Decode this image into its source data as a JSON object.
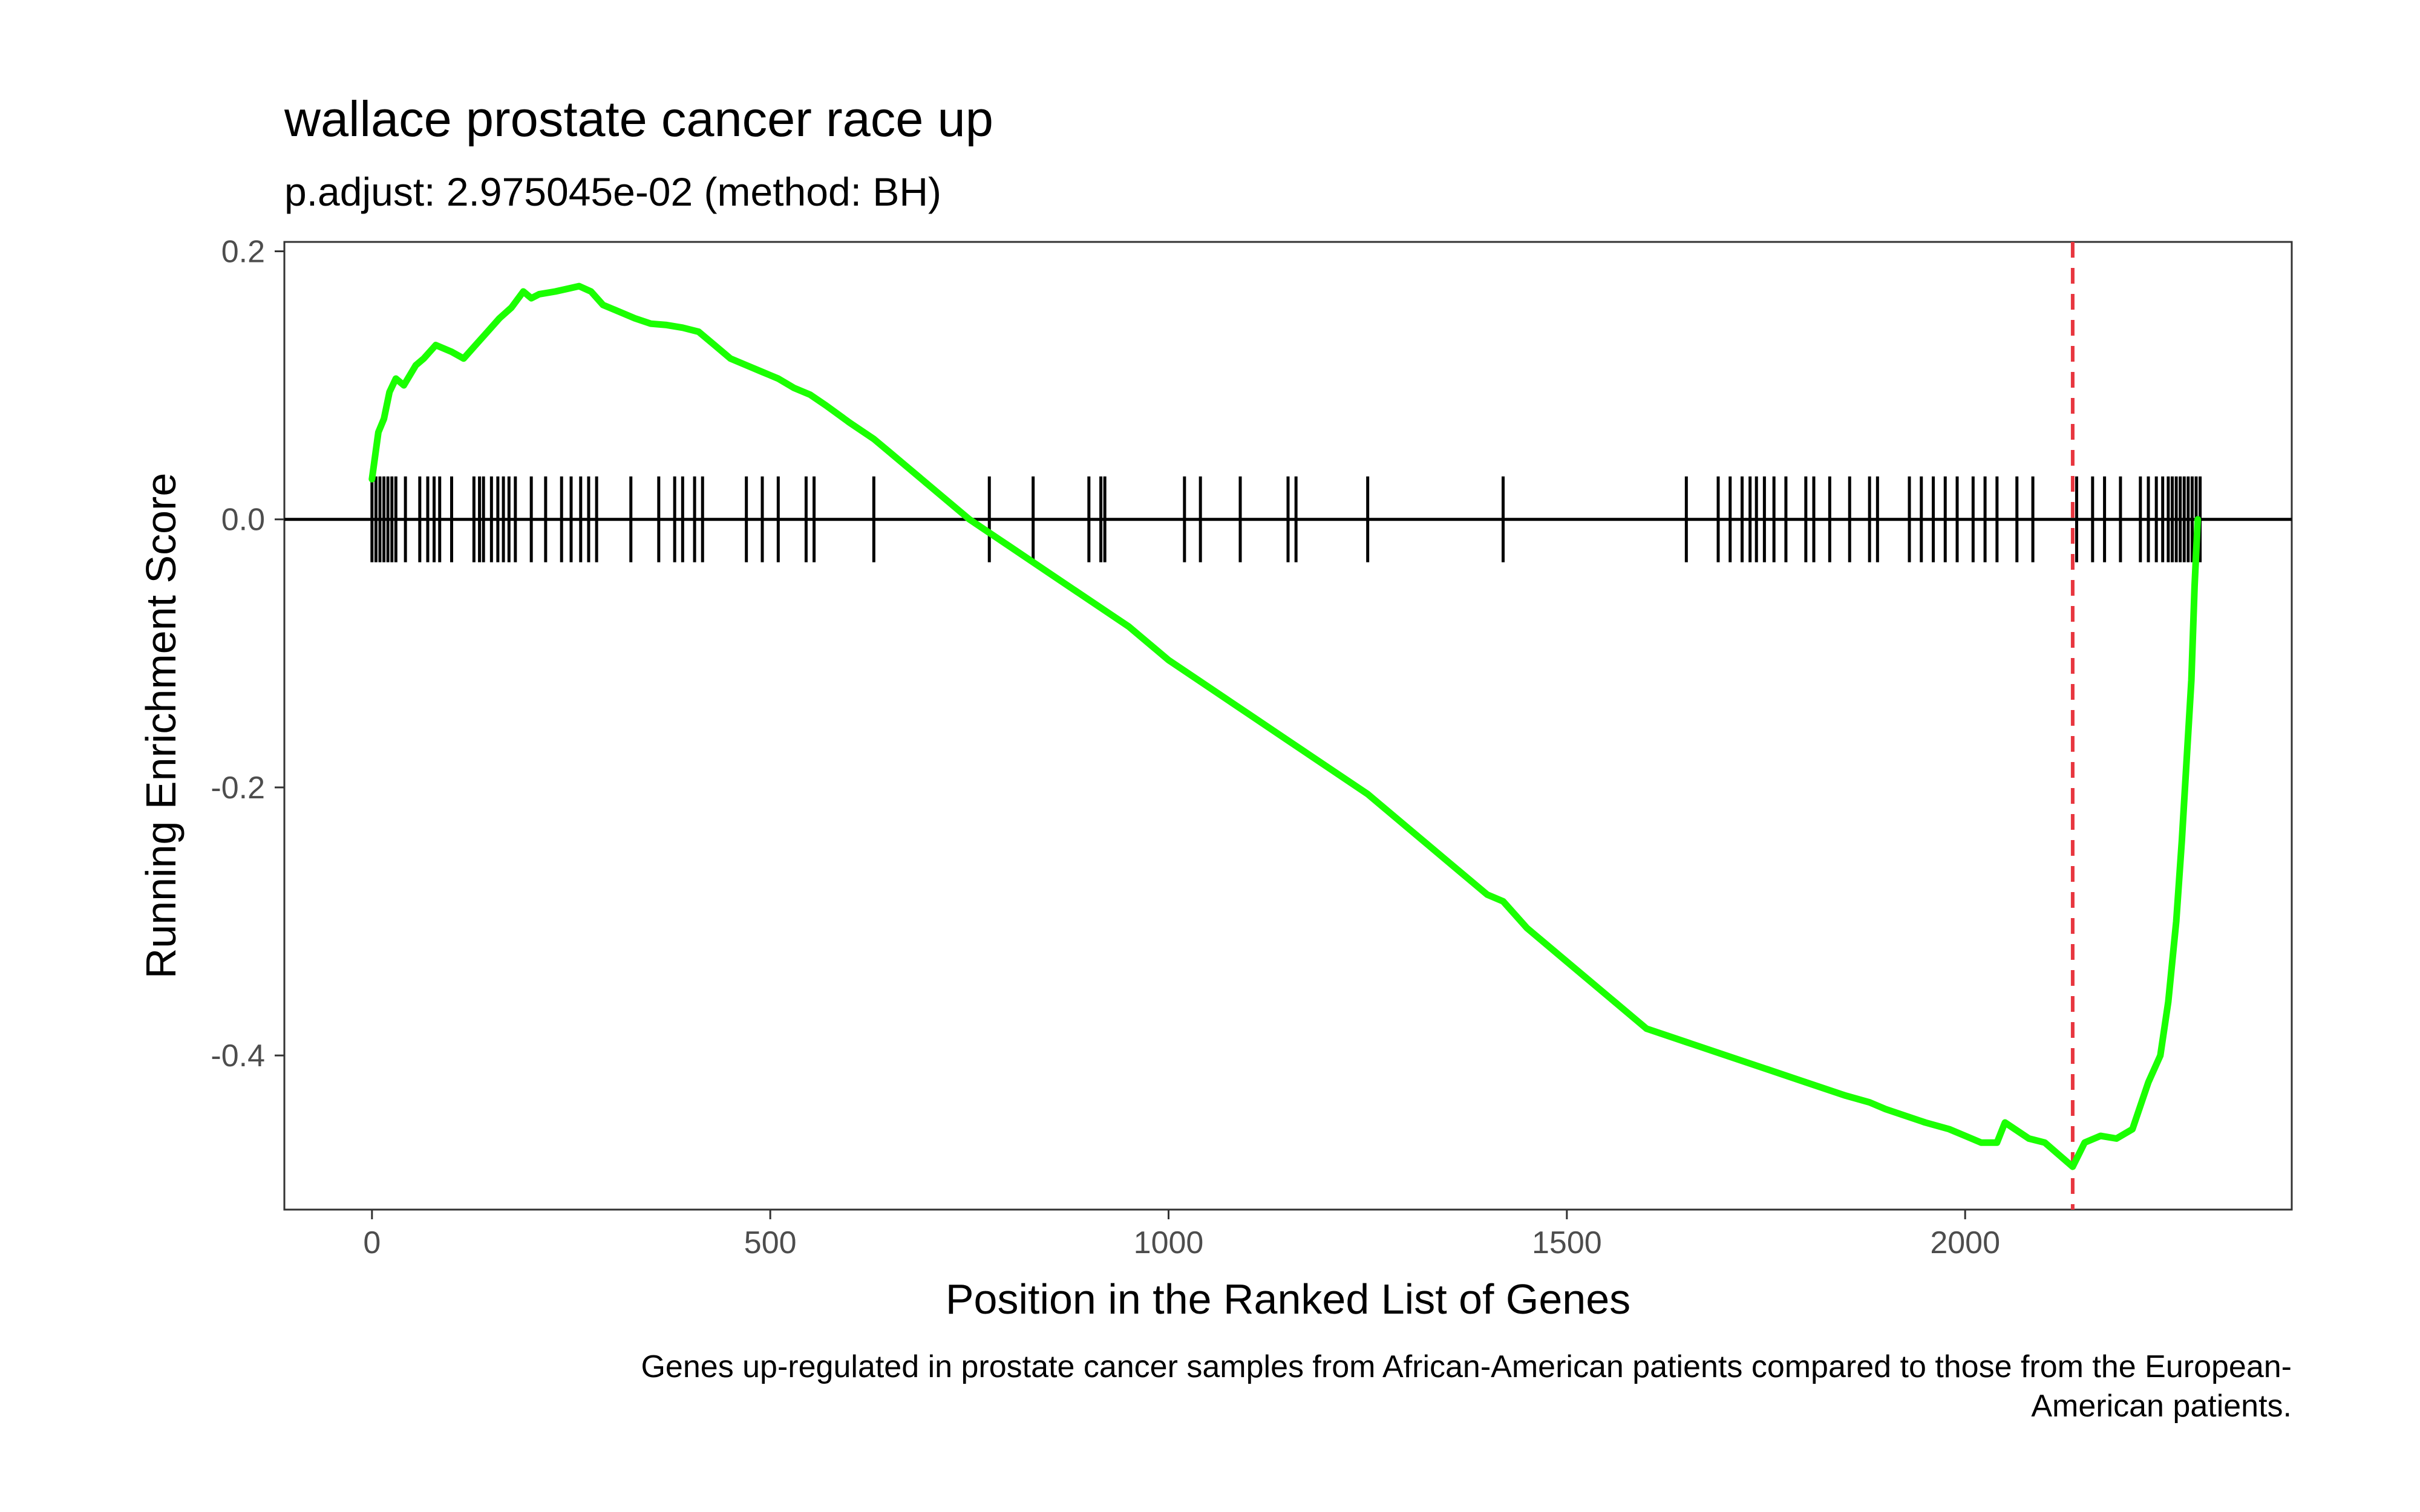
{
  "chart_data": {
    "type": "line",
    "title": "wallace prostate cancer race up",
    "subtitle": "p.adjust: 2.975045e-02 (method: BH)",
    "xlabel": "Position in the Ranked List of Genes",
    "ylabel": "Running Enrichment Score",
    "caption_lines": [
      "Genes up-regulated in prostate cancer samples from African-American patients compared to those from the European-",
      "American patients."
    ],
    "xlim": [
      -110,
      2410
    ],
    "ylim": [
      -0.515,
      0.207
    ],
    "x_ticks": [
      0,
      500,
      1000,
      1500,
      2000
    ],
    "x_tick_labels": [
      "0",
      "500",
      "1000",
      "1500",
      "2000"
    ],
    "y_ticks": [
      0.2,
      0.0,
      -0.2,
      -0.4
    ],
    "y_tick_labels": [
      "0.2",
      "0.0",
      "-0.2",
      "-0.4"
    ],
    "grid": false,
    "zero_line": 0.0,
    "vline": {
      "x": 2135,
      "color": "#e8363f"
    },
    "rug_range": [
      -0.032,
      0.032
    ],
    "series": [
      {
        "color": "#1aff00",
        "x": [
          0,
          8,
          15,
          22,
          30,
          40,
          55,
          65,
          80,
          100,
          115,
          130,
          145,
          160,
          175,
          190,
          200,
          210,
          230,
          245,
          260,
          275,
          290,
          310,
          330,
          350,
          370,
          390,
          410,
          430,
          450,
          470,
          490,
          510,
          530,
          550,
          570,
          600,
          630,
          650,
          700,
          750,
          775,
          800,
          850,
          900,
          950,
          1000,
          1050,
          1100,
          1150,
          1200,
          1250,
          1300,
          1350,
          1400,
          1420,
          1450,
          1500,
          1550,
          1600,
          1650,
          1700,
          1750,
          1800,
          1850,
          1880,
          1900,
          1950,
          1980,
          2000,
          2020,
          2040,
          2050,
          2080,
          2100,
          2135,
          2150,
          2170,
          2190,
          2210,
          2230,
          2245,
          2255,
          2265,
          2272,
          2278,
          2284,
          2288,
          2292
        ],
        "y": [
          0.03,
          0.065,
          0.075,
          0.095,
          0.105,
          0.1,
          0.115,
          0.12,
          0.13,
          0.125,
          0.12,
          0.13,
          0.14,
          0.15,
          0.158,
          0.17,
          0.165,
          0.168,
          0.17,
          0.172,
          0.174,
          0.17,
          0.16,
          0.155,
          0.15,
          0.146,
          0.145,
          0.143,
          0.14,
          0.13,
          0.12,
          0.115,
          0.11,
          0.105,
          0.098,
          0.093,
          0.085,
          0.072,
          0.06,
          0.05,
          0.025,
          0.0,
          -0.01,
          -0.02,
          -0.04,
          -0.06,
          -0.08,
          -0.105,
          -0.125,
          -0.145,
          -0.165,
          -0.185,
          -0.205,
          -0.23,
          -0.255,
          -0.28,
          -0.285,
          -0.305,
          -0.33,
          -0.355,
          -0.38,
          -0.39,
          -0.4,
          -0.41,
          -0.42,
          -0.43,
          -0.435,
          -0.44,
          -0.45,
          -0.455,
          -0.46,
          -0.465,
          -0.465,
          -0.45,
          -0.462,
          -0.465,
          -0.483,
          -0.465,
          -0.46,
          -0.462,
          -0.455,
          -0.42,
          -0.4,
          -0.36,
          -0.3,
          -0.24,
          -0.18,
          -0.12,
          -0.05,
          0.0
        ]
      }
    ],
    "hits": [
      0,
      5,
      10,
      15,
      20,
      25,
      30,
      42,
      60,
      70,
      78,
      85,
      100,
      128,
      135,
      140,
      150,
      158,
      165,
      172,
      180,
      200,
      218,
      238,
      250,
      262,
      272,
      282,
      325,
      360,
      380,
      390,
      405,
      415,
      470,
      490,
      510,
      545,
      555,
      630,
      775,
      830,
      900,
      915,
      920,
      1020,
      1040,
      1090,
      1150,
      1160,
      1250,
      1420,
      1650,
      1690,
      1705,
      1720,
      1730,
      1738,
      1748,
      1760,
      1775,
      1800,
      1810,
      1830,
      1855,
      1880,
      1890,
      1930,
      1945,
      1960,
      1975,
      1990,
      2010,
      2025,
      2040,
      2065,
      2085,
      2140,
      2160,
      2175,
      2195,
      2220,
      2230,
      2240,
      2248,
      2255,
      2260,
      2265,
      2270,
      2275,
      2280,
      2285,
      2290,
      2295
    ]
  }
}
